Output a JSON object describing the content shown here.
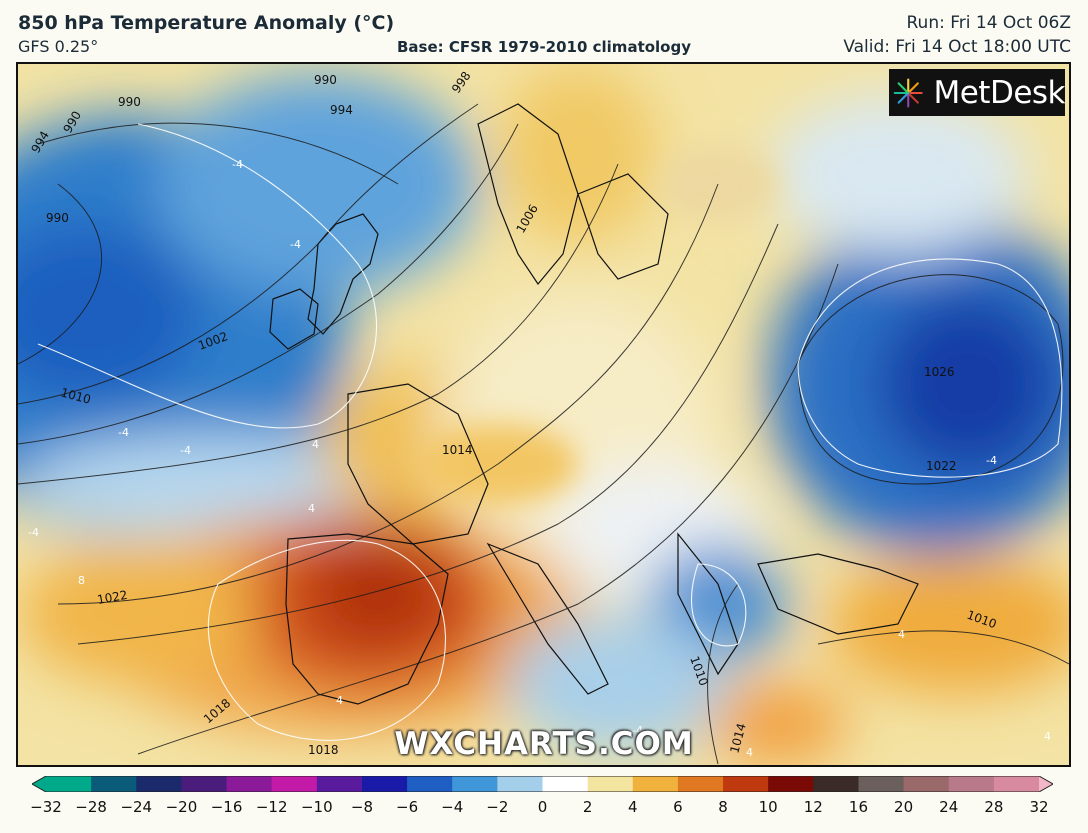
{
  "header": {
    "title": "850 hPa Temperature Anomaly (°C)",
    "model": "GFS 0.25°",
    "base": "Base: CFSR 1979-2010 climatology",
    "run": "Run: Fri 14 Oct 06Z",
    "valid": "Valid: Fri 14 Oct 18:00 UTC"
  },
  "logo": {
    "text": "MetDesk",
    "icon": "starburst-logo-icon"
  },
  "watermark": "WXCHARTS.COM",
  "isobar_labels": [
    "990",
    "990",
    "990",
    "994",
    "994",
    "990",
    "998",
    "1002",
    "1006",
    "1010",
    "1014",
    "1018",
    "1022",
    "1022",
    "1026",
    "1010",
    "1010",
    "1018",
    "1014"
  ],
  "anomaly_labels": [
    "-4",
    "-4",
    "-4",
    "-4",
    "-4",
    "-4",
    "-4",
    "4",
    "4",
    "4",
    "8",
    "4",
    "4",
    "4"
  ],
  "colorbar": {
    "ticks": [
      "−32",
      "−28",
      "−24",
      "−20",
      "−16",
      "−12",
      "−10",
      "−8",
      "−6",
      "−4",
      "−2",
      "0",
      "2",
      "4",
      "6",
      "8",
      "10",
      "12",
      "16",
      "20",
      "24",
      "28",
      "32"
    ],
    "colors": [
      "#00a98a",
      "#0a5a7a",
      "#1a2a6a",
      "#4a1c7c",
      "#8a1a9a",
      "#c41aa8",
      "#5a1a9e",
      "#1a1aa8",
      "#1f5fc4",
      "#3f96d8",
      "#a3cfea",
      "#ffffff",
      "#f3e4a0",
      "#f0b23c",
      "#e07822",
      "#c03a10",
      "#7a0a06",
      "#3a2a28",
      "#6a5f5c",
      "#9a6a6a",
      "#b87a8a",
      "#d88aa0",
      "#f2b6c6"
    ]
  }
}
